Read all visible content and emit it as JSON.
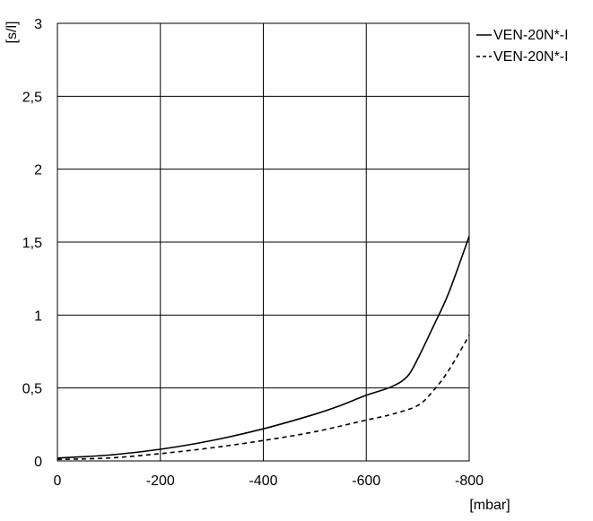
{
  "chart_data": {
    "type": "line",
    "y_unit": "[s/l]",
    "x_unit": "[mbar]",
    "xlim": [
      0,
      -800
    ],
    "ylim": [
      0,
      3
    ],
    "x_ticks": [
      {
        "value": 0,
        "label": "0"
      },
      {
        "value": -200,
        "label": "-200"
      },
      {
        "value": -400,
        "label": "-400"
      },
      {
        "value": -600,
        "label": "-600"
      },
      {
        "value": -800,
        "label": "-800"
      }
    ],
    "y_ticks": [
      {
        "value": 0,
        "label": "0"
      },
      {
        "value": 0.5,
        "label": "0,5"
      },
      {
        "value": 1,
        "label": "1"
      },
      {
        "value": 1.5,
        "label": "1,5"
      },
      {
        "value": 2,
        "label": "2"
      },
      {
        "value": 2.5,
        "label": "2,5"
      },
      {
        "value": 3,
        "label": "3"
      }
    ],
    "grid": true,
    "legend_position": "top-right",
    "series": [
      {
        "name": "VEN-20N*-I",
        "style": "solid",
        "color": "#000000",
        "points": [
          [
            0,
            0.02
          ],
          [
            -100,
            0.04
          ],
          [
            -200,
            0.08
          ],
          [
            -300,
            0.14
          ],
          [
            -400,
            0.22
          ],
          [
            -500,
            0.32
          ],
          [
            -550,
            0.38
          ],
          [
            -600,
            0.45
          ],
          [
            -650,
            0.51
          ],
          [
            -680,
            0.58
          ],
          [
            -700,
            0.7
          ],
          [
            -730,
            0.92
          ],
          [
            -760,
            1.15
          ],
          [
            -800,
            1.54
          ]
        ]
      },
      {
        "name": "VEN-20N*-I",
        "style": "dashed",
        "color": "#000000",
        "points": [
          [
            0,
            0.01
          ],
          [
            -100,
            0.02
          ],
          [
            -200,
            0.05
          ],
          [
            -300,
            0.09
          ],
          [
            -400,
            0.14
          ],
          [
            -500,
            0.2
          ],
          [
            -600,
            0.28
          ],
          [
            -650,
            0.32
          ],
          [
            -700,
            0.38
          ],
          [
            -730,
            0.48
          ],
          [
            -760,
            0.62
          ],
          [
            -800,
            0.86
          ]
        ]
      }
    ]
  }
}
